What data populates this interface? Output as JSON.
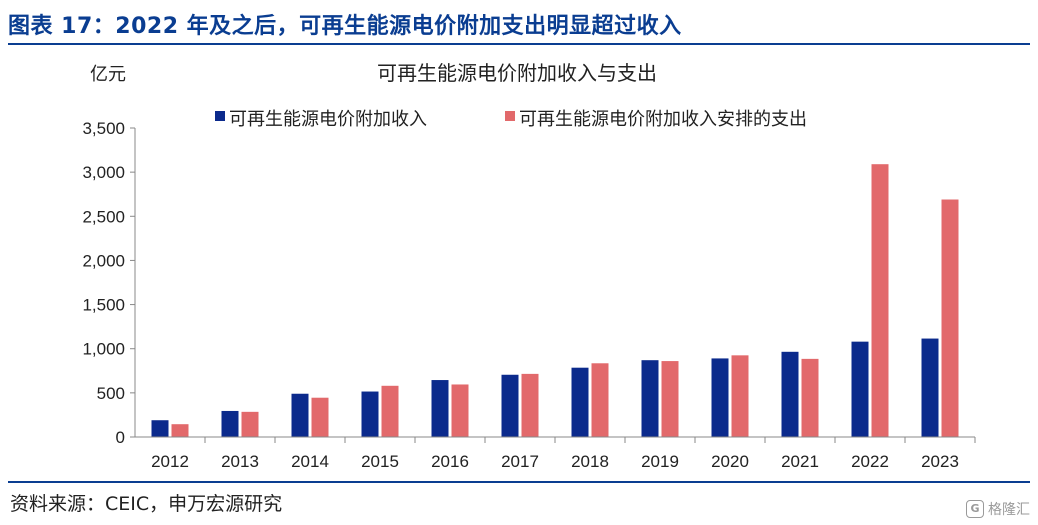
{
  "header": {
    "figure_title": "图表 17：2022 年及之后，可再生能源电价附加支出明显超过收入"
  },
  "footer": {
    "source": "资料来源：CEIC，申万宏源研究",
    "watermark": "格隆汇",
    "watermark_logo": "G"
  },
  "colors": {
    "title": "#0a3d91",
    "income": "#0b2a8c",
    "expense": "#e2696b",
    "axis": "#888888"
  },
  "chart_data": {
    "type": "bar",
    "title": "可再生能源电价附加收入与支出",
    "ylabel": "亿元",
    "xlabel": "",
    "ylim": [
      0,
      3500
    ],
    "yticks": [
      "0",
      "500",
      "1,000",
      "1,500",
      "2,000",
      "2,500",
      "3,000",
      "3,500"
    ],
    "ytick_values": [
      0,
      500,
      1000,
      1500,
      2000,
      2500,
      3000,
      3500
    ],
    "categories": [
      "2012",
      "2013",
      "2014",
      "2015",
      "2016",
      "2017",
      "2018",
      "2019",
      "2020",
      "2021",
      "2022",
      "2023"
    ],
    "series": [
      {
        "name": "可再生能源电价附加收入",
        "values": [
          190,
          295,
          490,
          515,
          645,
          705,
          785,
          870,
          890,
          965,
          1080,
          1115
        ]
      },
      {
        "name": "可再生能源电价附加收入安排的支出",
        "values": [
          145,
          285,
          445,
          580,
          595,
          715,
          835,
          860,
          925,
          885,
          3090,
          2690
        ]
      }
    ],
    "legend_position": "top",
    "grid": false
  }
}
